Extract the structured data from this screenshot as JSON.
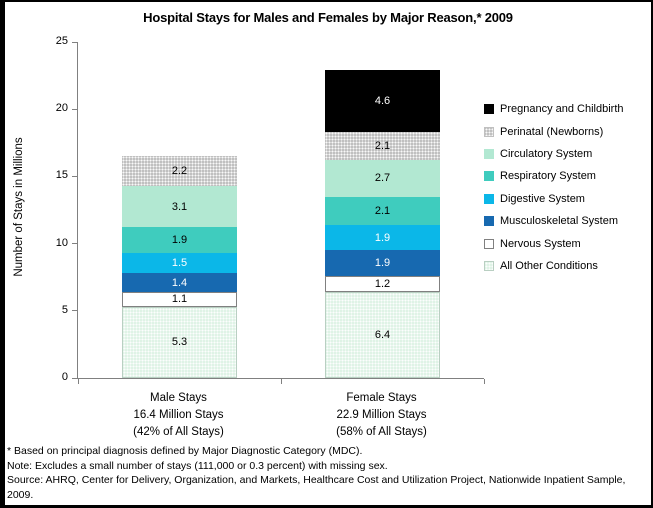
{
  "title": "Hospital Stays for Males and Females by Major Reason,* 2009",
  "chart_data": {
    "type": "bar",
    "stacked": true,
    "title": "Hospital Stays for Males and Females by Major Reason,* 2009",
    "xlabel": "",
    "ylabel": "Number of Stays in Millions",
    "ylim": [
      0,
      25
    ],
    "yticks": [
      0,
      5,
      10,
      15,
      20,
      25
    ],
    "grid": false,
    "legend_position": "right",
    "categories": [
      {
        "id": "male",
        "label_lines": [
          "Male Stays",
          "16.4 Million Stays",
          "(42% of All Stays)"
        ]
      },
      {
        "id": "female",
        "label_lines": [
          "Female Stays",
          "22.9 Million Stays",
          "(58% of All Stays)"
        ]
      }
    ],
    "series": [
      {
        "name": "Pregnancy and Childbirth",
        "color": "#000000",
        "text_color": "#ffffff",
        "pattern": false,
        "values": [
          0,
          4.6
        ]
      },
      {
        "name": "Perinatal (Newborns)",
        "color": "#C0C0C0",
        "text_color": "#000000",
        "pattern": true,
        "values": [
          2.2,
          2.1
        ]
      },
      {
        "name": "Circulatory System",
        "color": "#B2E8D2",
        "text_color": "#000000",
        "pattern": false,
        "values": [
          3.1,
          2.7
        ]
      },
      {
        "name": "Respiratory System",
        "color": "#3FCCBE",
        "text_color": "#000000",
        "pattern": false,
        "values": [
          1.9,
          2.1
        ]
      },
      {
        "name": "Digestive System",
        "color": "#0BB7E8",
        "text_color": "#ffffff",
        "pattern": false,
        "values": [
          1.5,
          1.9
        ]
      },
      {
        "name": "Musculoskeletal System",
        "color": "#1769B0",
        "text_color": "#ffffff",
        "pattern": false,
        "values": [
          1.4,
          1.9
        ]
      },
      {
        "name": "Nervous System",
        "color": "#FFFFFF",
        "text_color": "#000000",
        "pattern": false,
        "border": "#808080",
        "values": [
          1.1,
          1.2
        ]
      },
      {
        "name": "All Other Conditions",
        "color": "#DFF3E6",
        "text_color": "#000000",
        "pattern": true,
        "border": "#B9CFC2",
        "values": [
          5.3,
          6.4
        ]
      }
    ]
  },
  "footnotes": [
    "* Based on principal diagnosis defined by Major Diagnostic Category (MDC).",
    "Note: Excludes a small number of stays (111,000 or 0.3 percent) with missing sex.",
    "Source: AHRQ, Center for Delivery, Organization, and Markets, Healthcare Cost and Utilization Project, Nationwide Inpatient Sample, 2009."
  ]
}
